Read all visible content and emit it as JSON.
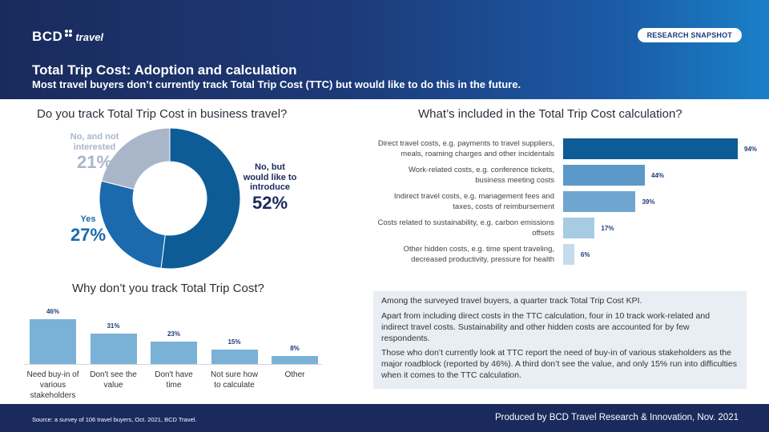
{
  "header": {
    "logo_bcd": "BCD",
    "logo_travel": "travel",
    "badge": "RESEARCH SNAPSHOT",
    "title": "Total Trip Cost: Adoption and calculation",
    "subtitle": "Most travel buyers don’t currently track Total Trip Cost (TTC) but would like to do this in the future."
  },
  "colors": {
    "dark_navy": "#1a2a5c",
    "dark_blue": "#0e5c96",
    "mid_blue": "#1a6aad",
    "grey_blue": "#a9b6ca",
    "bar_light": "#7ab2d6",
    "bar_lighter": "#b6d5e9"
  },
  "donut": {
    "title": "Do you track Total Trip Cost in business travel?",
    "no_interested": {
      "line1": "No, and not",
      "line2": "interested",
      "pct": "21%"
    },
    "no_introduce": {
      "line1": "No, but",
      "line2": "would like to",
      "line3": "introduce",
      "pct": "52%"
    },
    "yes": {
      "line1": "Yes",
      "pct": "27%"
    }
  },
  "right_chart": {
    "title": "What’s included in the Total Trip Cost calculation?",
    "rows": [
      {
        "line1": "Direct travel costs,  e.g. payments to travel suppliers,",
        "line2": "meals,  roaming charges and other incidentals",
        "value": "94%"
      },
      {
        "line1": "Work-related costs,  e.g. conference tickets,",
        "line2": "business meeting costs",
        "value": "44%"
      },
      {
        "line1": "Indirect travel costs,  e.g. management fees and",
        "line2": "taxes,  costs of reimbursement",
        "value": "39%"
      },
      {
        "line1": "Costs related to sustainability,  e.g. carbon emissions",
        "line2": "offsets",
        "value": "17%"
      },
      {
        "line1": "Other hidden costs,  e.g. time spent traveling,",
        "line2": "decreased productivity,  pressure for health",
        "value": "6%"
      }
    ]
  },
  "bottom_chart": {
    "title": "Why don’t you track Total Trip Cost?",
    "bars": [
      {
        "value": "46%",
        "cat1": "Need buy-in of",
        "cat2": "various",
        "cat3": "stakeholders"
      },
      {
        "value": "31%",
        "cat1": "Don't see the",
        "cat2": "value",
        "cat3": ""
      },
      {
        "value": "23%",
        "cat1": "Don't have",
        "cat2": "time",
        "cat3": ""
      },
      {
        "value": "15%",
        "cat1": "Not sure how",
        "cat2": "to calculate",
        "cat3": ""
      },
      {
        "value": "8%",
        "cat1": "Other",
        "cat2": "",
        "cat3": ""
      }
    ]
  },
  "chart_data": [
    {
      "type": "pie",
      "title": "Do you track Total Trip Cost in business travel?",
      "categories": [
        "No, but would like to introduce",
        "Yes",
        "No, and not interested"
      ],
      "values": [
        52,
        27,
        21
      ]
    },
    {
      "type": "bar",
      "orientation": "horizontal",
      "title": "What’s included in the Total Trip Cost calculation?",
      "categories": [
        "Direct travel costs",
        "Work-related costs",
        "Indirect travel costs",
        "Costs related to sustainability",
        "Other hidden costs"
      ],
      "values": [
        94,
        44,
        39,
        17,
        6
      ],
      "ylim": [
        0,
        100
      ]
    },
    {
      "type": "bar",
      "title": "Why don’t you track Total Trip Cost?",
      "categories": [
        "Need buy-in of various stakeholders",
        "Don't see the value",
        "Don't have time",
        "Not sure how to calculate",
        "Other"
      ],
      "values": [
        46,
        31,
        23,
        15,
        8
      ],
      "ylim": [
        0,
        50
      ]
    }
  ],
  "summary": {
    "p1": "Among the surveyed travel buyers, a quarter track Total Trip Cost KPI.",
    "p2": "Apart from including direct costs in the TTC calculation, four in 10 track work-related and indirect travel costs. Sustainability and other hidden costs are accounted for by few respondents.",
    "p3": "Those who don’t currently look at TTC report the need of buy-in of various stakeholders as the major roadblock (reported by 46%). A third don’t see the value, and only 15% run into difficulties when it comes to the TTC calculation."
  },
  "footer": {
    "source": "Source: a survey of 106  travel buyers, Oct. 2021, BCD Travel.",
    "produced": "Produced by BCD Travel Research & Innovation, Nov. 2021"
  }
}
